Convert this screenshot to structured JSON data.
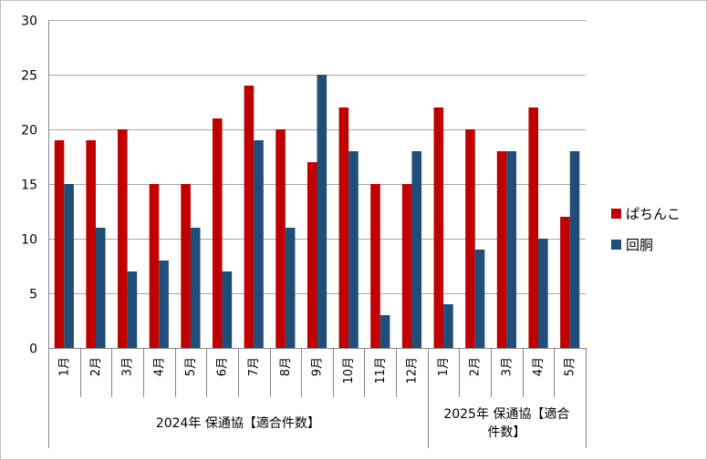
{
  "chart_data": {
    "type": "bar",
    "y_ticks": [
      "0",
      "5",
      "10",
      "15",
      "20",
      "25",
      "30"
    ],
    "ylim": [
      0,
      30
    ],
    "grid": true,
    "legend_position": "right",
    "categories": [
      "1月",
      "2月",
      "3月",
      "4月",
      "5月",
      "6月",
      "7月",
      "8月",
      "9月",
      "10月",
      "11月",
      "12月",
      "1月",
      "2月",
      "3月",
      "4月",
      "5月"
    ],
    "groups": [
      {
        "label_lines": [
          "2024年 保通協【適合件数】"
        ],
        "start": 0,
        "count": 12
      },
      {
        "label_lines": [
          "2025年 保通協【適合",
          "件数】"
        ],
        "start": 12,
        "count": 5
      }
    ],
    "series": [
      {
        "name": "ぱちんこ",
        "color": "#C00000",
        "values": [
          19,
          19,
          20,
          15,
          15,
          21,
          24,
          20,
          17,
          22,
          15,
          15,
          22,
          20,
          18,
          22,
          12
        ]
      },
      {
        "name": "回胴",
        "color": "#1F4E79",
        "values": [
          15,
          11,
          7,
          8,
          11,
          7,
          19,
          11,
          25,
          18,
          3,
          18,
          4,
          9,
          18,
          10,
          18
        ]
      }
    ]
  }
}
